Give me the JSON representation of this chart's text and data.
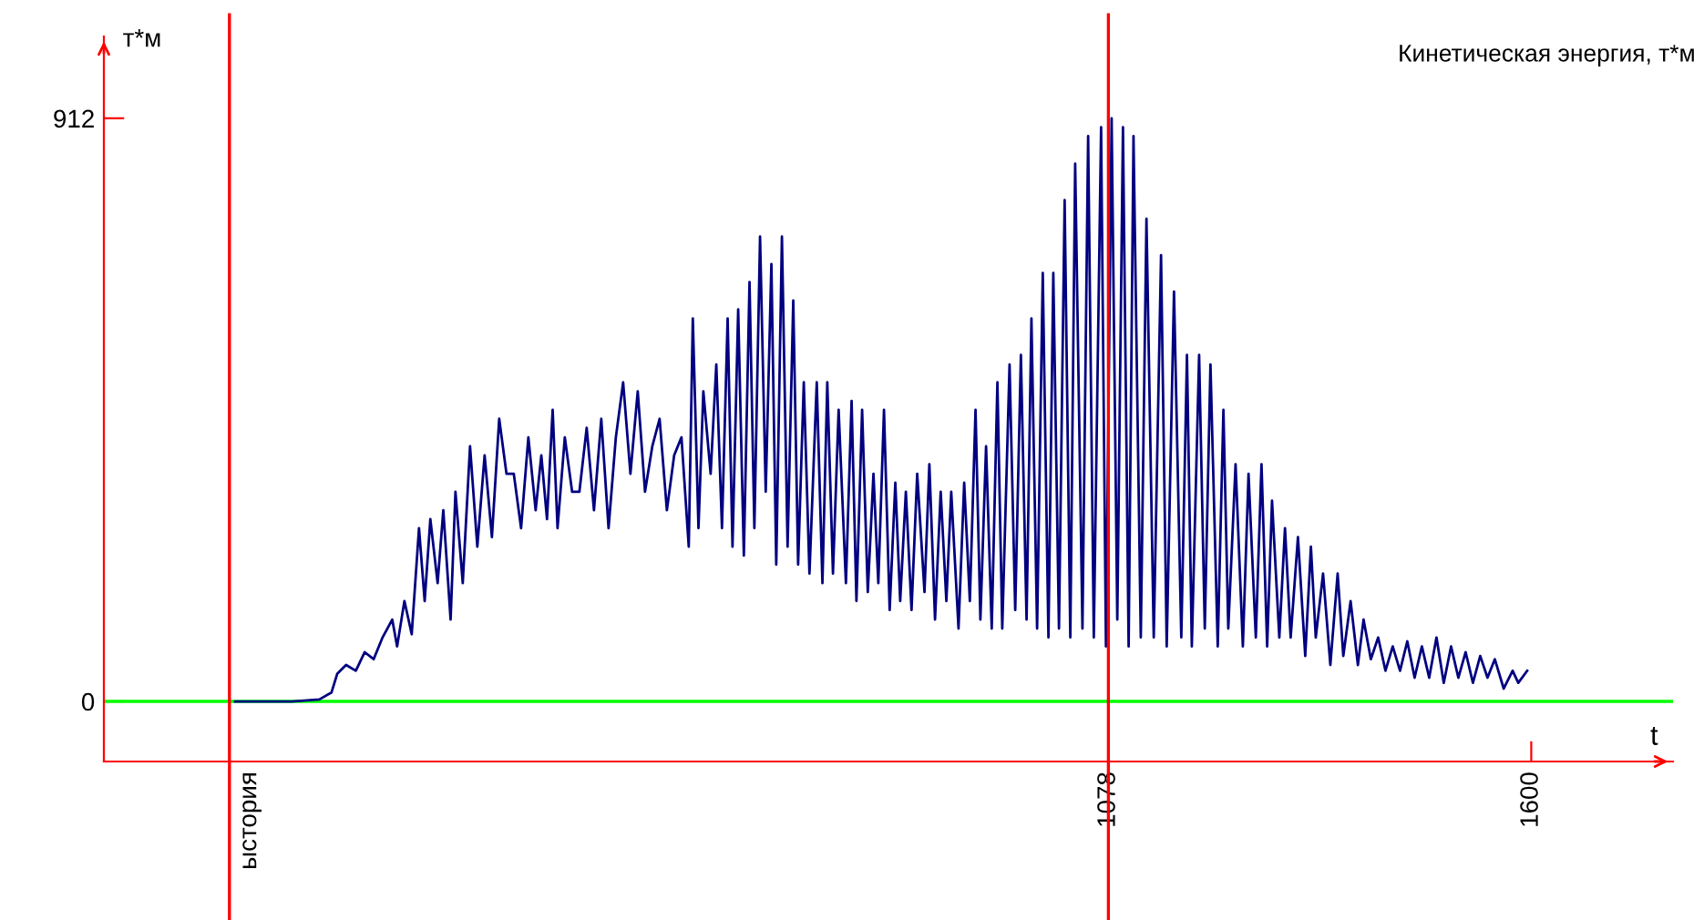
{
  "chart_data": {
    "type": "line",
    "title": "Кинетическая энергия, т*м",
    "xlabel": "t",
    "ylabel": "т*м",
    "x": [
      0,
      70,
      104,
      119,
      126,
      137,
      149,
      160,
      171,
      182,
      194,
      200,
      209,
      218,
      227,
      234,
      241,
      250,
      257,
      266,
      272,
      281,
      290,
      299,
      308,
      317,
      326,
      335,
      344,
      353,
      362,
      371,
      378,
      385,
      392,
      398,
      407,
      416,
      425,
      434,
      443,
      452,
      461,
      470,
      479,
      488,
      497,
      506,
      515,
      524,
      533,
      542,
      551,
      560,
      565,
      572,
      578,
      587,
      594,
      601,
      608,
      614,
      621,
      628,
      635,
      641,
      648,
      655,
      662,
      668,
      675,
      682,
      689,
      695,
      702,
      709,
      718,
      725,
      731,
      738,
      745,
      754,
      761,
      767,
      774,
      781,
      788,
      794,
      801,
      808,
      815,
      821,
      828,
      835,
      842,
      851,
      857,
      864,
      871,
      878,
      884,
      893,
      900,
      907,
      914,
      920,
      927,
      934,
      941,
      947,
      956,
      963,
      970,
      977,
      983,
      990,
      997,
      1004,
      1010,
      1017,
      1024,
      1031,
      1037,
      1046,
      1053,
      1060,
      1069,
      1075,
      1082,
      1089,
      1096,
      1103,
      1109,
      1118,
      1125,
      1134,
      1143,
      1150,
      1159,
      1168,
      1175,
      1181,
      1190,
      1197,
      1204,
      1213,
      1220,
      1226,
      1235,
      1244,
      1251,
      1260,
      1267,
      1274,
      1280,
      1289,
      1296,
      1303,
      1312,
      1321,
      1328,
      1334,
      1343,
      1352,
      1361,
      1368,
      1377,
      1386,
      1393,
      1402,
      1411,
      1420,
      1429,
      1438,
      1447,
      1456,
      1465,
      1474,
      1483,
      1492,
      1501,
      1510,
      1519,
      1528,
      1537,
      1546,
      1555,
      1566,
      1577,
      1584,
      1595
    ],
    "series": [
      {
        "color": "#000080",
        "values": [
          0,
          0,
          3,
          14,
          43,
          57,
          48,
          77,
          66,
          100,
          128,
          86,
          157,
          105,
          271,
          157,
          285,
          185,
          299,
          128,
          328,
          185,
          399,
          242,
          385,
          257,
          442,
          356,
          356,
          271,
          413,
          299,
          385,
          285,
          456,
          271,
          413,
          328,
          328,
          428,
          299,
          442,
          271,
          413,
          499,
          356,
          485,
          328,
          399,
          442,
          299,
          385,
          413,
          242,
          599,
          271,
          485,
          356,
          527,
          271,
          599,
          242,
          613,
          228,
          656,
          271,
          727,
          328,
          684,
          214,
          727,
          242,
          627,
          214,
          499,
          200,
          499,
          185,
          499,
          200,
          456,
          185,
          470,
          157,
          456,
          171,
          356,
          185,
          456,
          143,
          342,
          157,
          328,
          143,
          356,
          171,
          371,
          128,
          328,
          157,
          328,
          114,
          342,
          157,
          456,
          128,
          399,
          114,
          499,
          114,
          527,
          143,
          542,
          128,
          599,
          114,
          670,
          100,
          670,
          114,
          784,
          100,
          841,
          114,
          884,
          100,
          898,
          86,
          912,
          128,
          898,
          86,
          884,
          100,
          755,
          100,
          698,
          86,
          641,
          100,
          542,
          86,
          542,
          114,
          527,
          86,
          456,
          114,
          371,
          86,
          356,
          100,
          371,
          86,
          314,
          100,
          271,
          100,
          257,
          71,
          242,
          100,
          200,
          57,
          200,
          71,
          157,
          57,
          128,
          66,
          100,
          48,
          86,
          48,
          94,
          37,
          86,
          37,
          100,
          29,
          86,
          37,
          77,
          29,
          71,
          37,
          66,
          20,
          48,
          29,
          48
        ]
      }
    ],
    "xlim": [
      -162,
      1775
    ],
    "ylim": [
      -94,
      1040
    ],
    "xticks": [
      1078,
      1600
    ],
    "yticks": [
      0,
      912
    ],
    "ref_lines": [
      {
        "axis": "x",
        "value": -7,
        "label": "ыстория",
        "color": "#ff0000"
      },
      {
        "axis": "x",
        "value": 1078,
        "color": "#ff0000"
      },
      {
        "axis": "y",
        "value": 0,
        "color": "#00ff00"
      }
    ],
    "grid": false,
    "legend": false
  }
}
